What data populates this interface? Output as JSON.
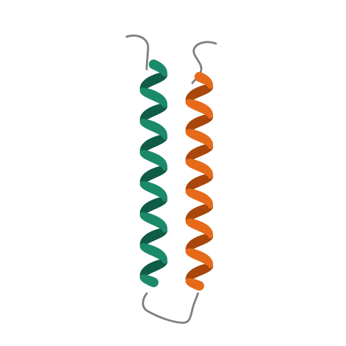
{
  "figure": {
    "background": "#ffffff",
    "chains": [
      {
        "id": "A",
        "color": "#1b8a6b",
        "shade": "#0f5c47",
        "turns": 7
      },
      {
        "id": "B",
        "color": "#e66a1a",
        "shade": "#a8460c",
        "turns": 7
      }
    ],
    "loop_color": "#808080"
  }
}
